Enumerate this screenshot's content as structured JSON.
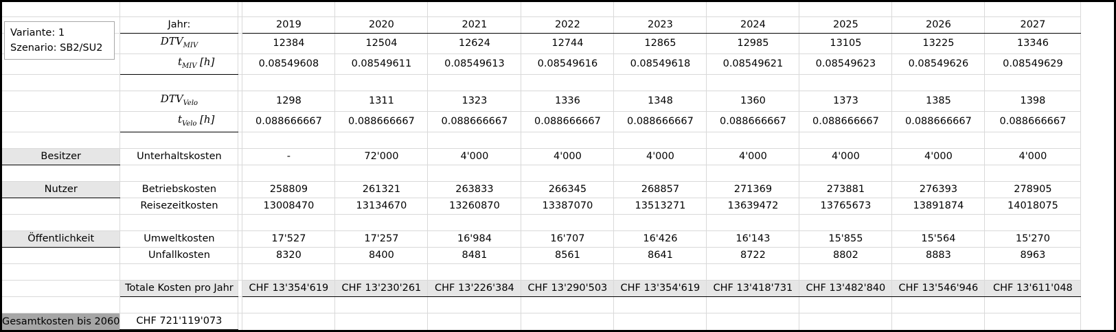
{
  "info": {
    "variante": "Variante: 1",
    "szenario": "Szenario: SB2/SU2"
  },
  "header": {
    "label": "Jahr:",
    "years": [
      "2019",
      "2020",
      "2021",
      "2022",
      "2023",
      "2024",
      "2025",
      "2026",
      "2027"
    ]
  },
  "miv": {
    "dtv_symbol": "DTV",
    "dtv_sub": "MIV",
    "t_symbol": "t",
    "t_sub": "MIV",
    "t_unit": "[h]",
    "dtv": [
      "12384",
      "12504",
      "12624",
      "12744",
      "12865",
      "12985",
      "13105",
      "13225",
      "13346"
    ],
    "t": [
      "0.08549608",
      "0.08549611",
      "0.08549613",
      "0.08549616",
      "0.08549618",
      "0.08549621",
      "0.08549623",
      "0.08549626",
      "0.08549629"
    ]
  },
  "velo": {
    "dtv_symbol": "DTV",
    "dtv_sub": "Velo",
    "t_symbol": "t",
    "t_sub": "Velo",
    "t_unit": "[h]",
    "dtv": [
      "1298",
      "1311",
      "1323",
      "1336",
      "1348",
      "1360",
      "1373",
      "1385",
      "1398"
    ],
    "t": [
      "0.088666667",
      "0.088666667",
      "0.088666667",
      "0.088666667",
      "0.088666667",
      "0.088666667",
      "0.088666667",
      "0.088666667",
      "0.088666667"
    ]
  },
  "besitzer": {
    "group": "Besitzer",
    "row_label": "Unterhaltskosten",
    "values": [
      "-",
      "72'000",
      "4'000",
      "4'000",
      "4'000",
      "4'000",
      "4'000",
      "4'000",
      "4'000"
    ]
  },
  "nutzer": {
    "group": "Nutzer",
    "betrieb_label": "Betriebskosten",
    "betrieb": [
      "258809",
      "261321",
      "263833",
      "266345",
      "268857",
      "271369",
      "273881",
      "276393",
      "278905"
    ],
    "reise_label": "Reisezeitkosten",
    "reise": [
      "13008470",
      "13134670",
      "13260870",
      "13387070",
      "13513271",
      "13639472",
      "13765673",
      "13891874",
      "14018075"
    ]
  },
  "oeffentlichkeit": {
    "group": "Öffentlichkeit",
    "umwelt_label": "Umweltkosten",
    "umwelt": [
      "17'527",
      "17'257",
      "16'984",
      "16'707",
      "16'426",
      "16'143",
      "15'855",
      "15'564",
      "15'270"
    ],
    "unfall_label": "Unfallkosten",
    "unfall": [
      "8320",
      "8400",
      "8481",
      "8561",
      "8641",
      "8722",
      "8802",
      "8883",
      "8963"
    ]
  },
  "total": {
    "label": "Totale Kosten pro Jahr",
    "values": [
      "CHF 13'354'619",
      "CHF 13'230'261",
      "CHF 13'226'384",
      "CHF 13'290'503",
      "CHF 13'354'619",
      "CHF 13'418'731",
      "CHF 13'482'840",
      "CHF 13'546'946",
      "CHF 13'611'048"
    ]
  },
  "gesamt": {
    "label": "Gesamtkosten bis 2060",
    "value": "CHF 721'119'073"
  }
}
